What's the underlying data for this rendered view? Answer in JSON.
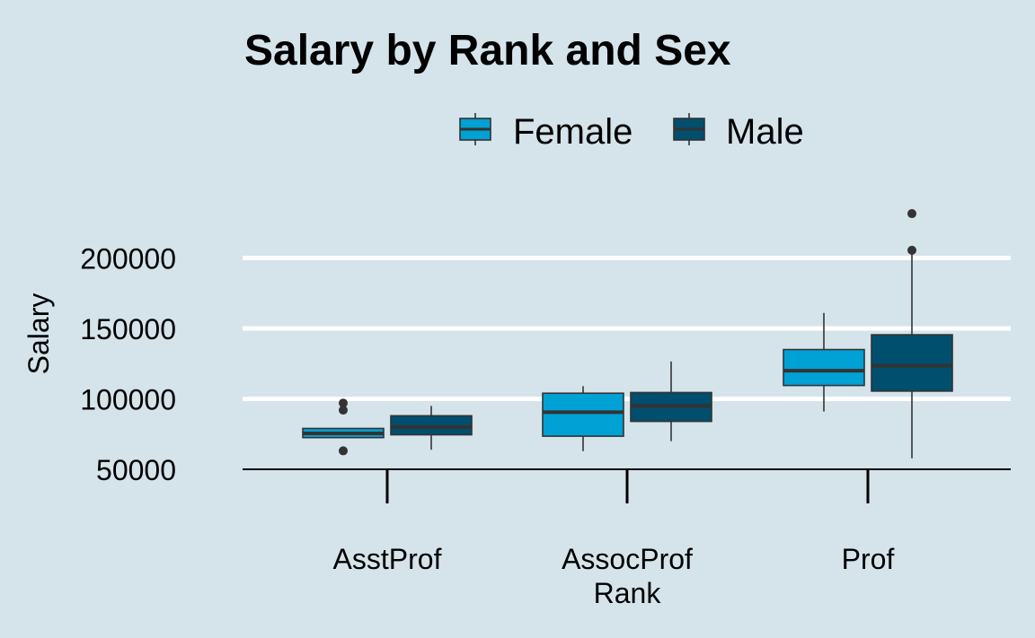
{
  "chart_data": {
    "type": "box",
    "title": "Salary by Rank and Sex",
    "xlabel": "Rank",
    "ylabel": "Salary",
    "categories": [
      "AsstProf",
      "AssocProf",
      "Prof"
    ],
    "y_ticks": [
      50000,
      100000,
      150000,
      200000
    ],
    "ylim": [
      50000,
      235000
    ],
    "grid": "horizontal major lines",
    "legend_position": "top",
    "series": [
      {
        "name": "Female",
        "color": "#00a1d5",
        "boxes": [
          {
            "category": "AsstProf",
            "whisker_low": 72500,
            "q1": 72500,
            "median": 75500,
            "q3": 79000,
            "whisker_high": 79000,
            "outliers": [
              63100,
              92000,
              97000
            ]
          },
          {
            "category": "AssocProf",
            "whisker_low": 62900,
            "q1": 73500,
            "median": 90500,
            "q3": 104000,
            "whisker_high": 109000,
            "outliers": []
          },
          {
            "category": "Prof",
            "whisker_low": 91000,
            "q1": 109500,
            "median": 120000,
            "q3": 135000,
            "whisker_high": 161000,
            "outliers": []
          }
        ]
      },
      {
        "name": "Male",
        "color": "#004f6e",
        "boxes": [
          {
            "category": "AsstProf",
            "whisker_low": 63900,
            "q1": 74500,
            "median": 80000,
            "q3": 88000,
            "whisker_high": 95000,
            "outliers": []
          },
          {
            "category": "AssocProf",
            "whisker_low": 70000,
            "q1": 84000,
            "median": 95000,
            "q3": 104500,
            "whisker_high": 126500,
            "outliers": []
          },
          {
            "category": "Prof",
            "whisker_low": 57800,
            "q1": 105500,
            "median": 123500,
            "q3": 145500,
            "whisker_high": 205500,
            "outliers": [
              205500,
              231500
            ]
          }
        ]
      }
    ]
  }
}
